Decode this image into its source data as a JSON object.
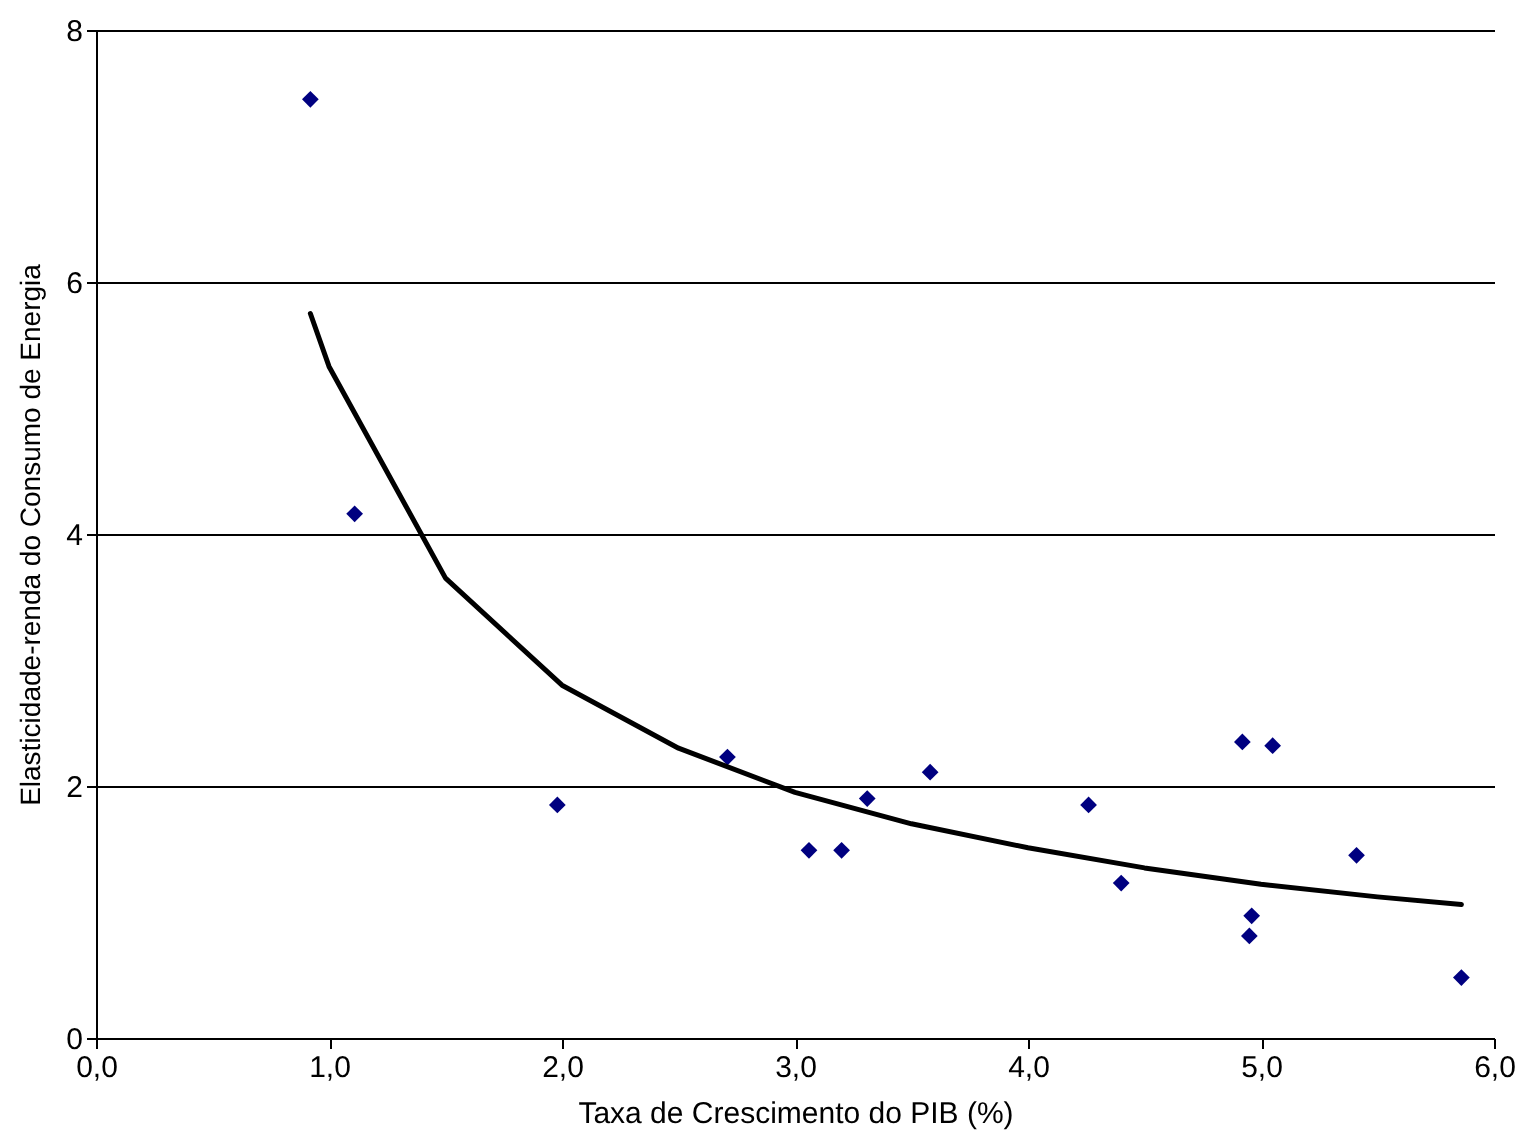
{
  "chart_data": {
    "type": "scatter",
    "xlabel": "Taxa de Crescimento do PIB (%)",
    "ylabel": "Elasticidade-renda do Consumo de Energia",
    "xlim": [
      0,
      6
    ],
    "xticks": [
      {
        "value": 0,
        "label": "0,0"
      },
      {
        "value": 1,
        "label": "1,0"
      },
      {
        "value": 2,
        "label": "2,0"
      },
      {
        "value": 3,
        "label": "3,0"
      },
      {
        "value": 4,
        "label": "4,0"
      },
      {
        "value": 5,
        "label": "5,0"
      },
      {
        "value": 6,
        "label": "6,0"
      }
    ],
    "ylim": [
      0,
      8
    ],
    "yticks": [
      0,
      2,
      4,
      6,
      8
    ],
    "grid": "y",
    "series": [
      {
        "marker": "diamond",
        "color": "#000080",
        "x": [
          0.92,
          1.11,
          1.98,
          2.71,
          3.06,
          3.2,
          3.31,
          3.58,
          4.26,
          4.4,
          4.92,
          5.05,
          4.96,
          4.95,
          5.41,
          5.86
        ],
        "values": [
          7.45,
          4.16,
          1.85,
          2.23,
          1.49,
          1.49,
          1.9,
          2.11,
          1.85,
          1.23,
          2.35,
          2.32,
          0.97,
          0.81,
          1.45,
          0.48
        ]
      },
      {
        "type": "line",
        "marker": "none",
        "line_style": "solid",
        "color": "#000000",
        "x": [
          0.92,
          1.0,
          1.5,
          2.0,
          2.5,
          3.0,
          3.5,
          4.0,
          4.5,
          5.0,
          5.5,
          5.86
        ],
        "values": [
          5.75,
          5.33,
          3.65,
          2.8,
          2.3,
          1.95,
          1.7,
          1.51,
          1.35,
          1.22,
          1.12,
          1.06
        ]
      }
    ]
  }
}
